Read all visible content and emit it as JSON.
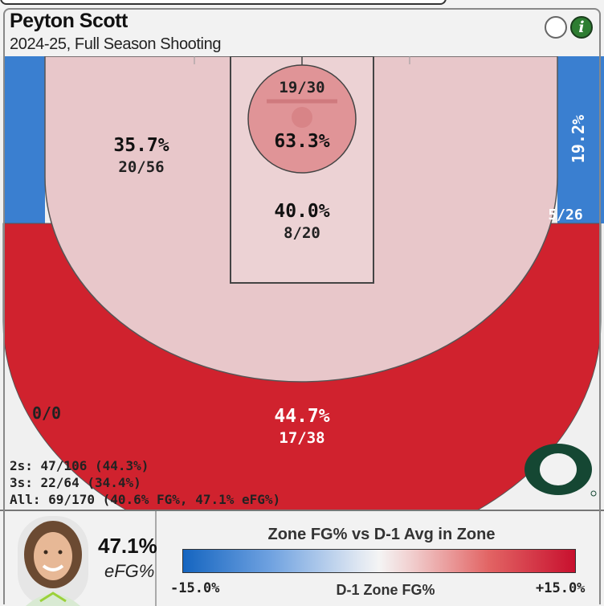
{
  "header": {
    "player_name": "Peyton Scott",
    "season_label": "2024-25, Full Season Shooting",
    "info_icon_glyph": "i"
  },
  "colors": {
    "hot_red": "#d0222e",
    "warm_pink": "#e8c7ca",
    "rim_red": "#e09497",
    "cold_blue": "#3a7fd0",
    "neutral": "#f0f0f0",
    "logo_green": "#154733"
  },
  "chart_data": {
    "type": "heatmap",
    "title": "",
    "zones": [
      {
        "name": "Rim",
        "fg_pct": "63.3%",
        "made": 19,
        "attempts": 30,
        "made_att": "19/30"
      },
      {
        "name": "Paint (non-rim)",
        "fg_pct": "40.0%",
        "made": 8,
        "attempts": 20,
        "made_att": "8/20"
      },
      {
        "name": "Mid-range",
        "fg_pct": "35.7%",
        "made": 20,
        "attempts": 56,
        "made_att": "20/56"
      },
      {
        "name": "Right corner 3",
        "fg_pct": "19.2%",
        "made": 5,
        "attempts": 26,
        "made_att": "5/26"
      },
      {
        "name": "Left corner 3",
        "fg_pct": "",
        "made": 0,
        "attempts": 0,
        "made_att": "0/0"
      },
      {
        "name": "Above-break 3",
        "fg_pct": "44.7%",
        "made": 17,
        "attempts": 38,
        "made_att": "17/38"
      }
    ],
    "legend": {
      "title": "Zone FG% vs D-1 Avg in Zone",
      "axis_label": "D-1 Zone FG%",
      "min_label": "-15.0%",
      "max_label": "+15.0%",
      "range": [
        -15.0,
        15.0
      ]
    }
  },
  "totals": {
    "twos": "2s: 47/106 (44.3%)",
    "threes": "3s: 22/64 (34.4%)",
    "all": "All: 69/170 (40.6% FG%, 47.1% eFG%)"
  },
  "efg": {
    "value": "47.1%",
    "label": "eFG%"
  }
}
